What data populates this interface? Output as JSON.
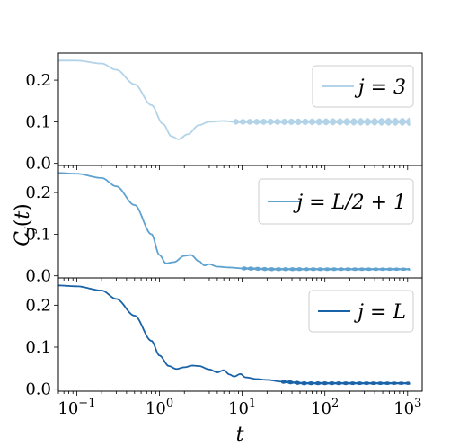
{
  "chart_data": {
    "type": "line",
    "ylabel": "C_j(t)",
    "xlabel": "t",
    "xscale": "log",
    "xlim": [
      0.06,
      1500
    ],
    "xticks": [
      {
        "value": 0.1,
        "base": "10",
        "exp": "−1"
      },
      {
        "value": 1,
        "base": "10",
        "exp": "0"
      },
      {
        "value": 10,
        "base": "10",
        "exp": "1"
      },
      {
        "value": 100,
        "base": "10",
        "exp": "2"
      },
      {
        "value": 1000,
        "base": "10",
        "exp": "3"
      }
    ],
    "panels": [
      {
        "legend": "j = 3",
        "color": "#b3d3e8",
        "ylim": [
          -0.005,
          0.265
        ],
        "yticks": [
          "0.0",
          "0.1",
          "0.2"
        ],
        "ytick_values": [
          0.0,
          0.1,
          0.2
        ],
        "legend_position": "top-right",
        "series": [
          {
            "t": 0.06,
            "c": 0.247
          },
          {
            "t": 0.1,
            "c": 0.247
          },
          {
            "t": 0.2,
            "c": 0.24
          },
          {
            "t": 0.3,
            "c": 0.225
          },
          {
            "t": 0.5,
            "c": 0.19
          },
          {
            "t": 0.8,
            "c": 0.14
          },
          {
            "t": 1.1,
            "c": 0.095
          },
          {
            "t": 1.4,
            "c": 0.065
          },
          {
            "t": 1.7,
            "c": 0.058
          },
          {
            "t": 2.2,
            "c": 0.07
          },
          {
            "t": 3,
            "c": 0.092
          },
          {
            "t": 4,
            "c": 0.1
          },
          {
            "t": 6,
            "c": 0.102
          },
          {
            "t": 8,
            "c": 0.1
          }
        ],
        "oscillation": {
          "start": 8,
          "mean": 0.1,
          "amp_start": 0.005,
          "amp_end": 0.008
        }
      },
      {
        "legend": "j = L/2 + 1",
        "color": "#5fa2d0",
        "ylim": [
          -0.005,
          0.265
        ],
        "yticks": [
          "0.0",
          "0.1",
          "0.2"
        ],
        "ytick_values": [
          0.0,
          0.1,
          0.2
        ],
        "legend_position": "top-right",
        "series": [
          {
            "t": 0.06,
            "c": 0.247
          },
          {
            "t": 0.1,
            "c": 0.245
          },
          {
            "t": 0.2,
            "c": 0.235
          },
          {
            "t": 0.3,
            "c": 0.215
          },
          {
            "t": 0.5,
            "c": 0.17
          },
          {
            "t": 0.8,
            "c": 0.1
          },
          {
            "t": 1.0,
            "c": 0.05
          },
          {
            "t": 1.2,
            "c": 0.03
          },
          {
            "t": 1.5,
            "c": 0.033
          },
          {
            "t": 2.0,
            "c": 0.048
          },
          {
            "t": 2.4,
            "c": 0.05
          },
          {
            "t": 3.0,
            "c": 0.035
          },
          {
            "t": 3.5,
            "c": 0.025
          },
          {
            "t": 4.0,
            "c": 0.028
          },
          {
            "t": 5.0,
            "c": 0.022
          },
          {
            "t": 7.0,
            "c": 0.02
          },
          {
            "t": 10,
            "c": 0.018
          }
        ],
        "oscillation": {
          "start": 10,
          "mean": 0.016,
          "amp_start": 0.003,
          "amp_end": 0.002
        }
      },
      {
        "legend": "j = L",
        "color": "#1a63a8",
        "ylim": [
          -0.005,
          0.265
        ],
        "yticks": [
          "0.0",
          "0.1",
          "0.2"
        ],
        "ytick_values": [
          0.0,
          0.1,
          0.2
        ],
        "legend_position": "top-right",
        "series": [
          {
            "t": 0.06,
            "c": 0.247
          },
          {
            "t": 0.1,
            "c": 0.245
          },
          {
            "t": 0.2,
            "c": 0.235
          },
          {
            "t": 0.3,
            "c": 0.215
          },
          {
            "t": 0.5,
            "c": 0.175
          },
          {
            "t": 0.8,
            "c": 0.115
          },
          {
            "t": 1.0,
            "c": 0.08
          },
          {
            "t": 1.3,
            "c": 0.055
          },
          {
            "t": 1.6,
            "c": 0.048
          },
          {
            "t": 2.0,
            "c": 0.052
          },
          {
            "t": 2.5,
            "c": 0.056
          },
          {
            "t": 3.0,
            "c": 0.055
          },
          {
            "t": 4.0,
            "c": 0.047
          },
          {
            "t": 5.0,
            "c": 0.04
          },
          {
            "t": 6.0,
            "c": 0.045
          },
          {
            "t": 7.0,
            "c": 0.035
          },
          {
            "t": 8.0,
            "c": 0.03
          },
          {
            "t": 9.5,
            "c": 0.036
          },
          {
            "t": 11,
            "c": 0.028
          },
          {
            "t": 15,
            "c": 0.024
          },
          {
            "t": 20,
            "c": 0.022
          },
          {
            "t": 30,
            "c": 0.018
          }
        ],
        "oscillation": {
          "start": 30,
          "mean": 0.014,
          "amp_start": 0.003,
          "amp_end": 0.002
        }
      }
    ]
  }
}
